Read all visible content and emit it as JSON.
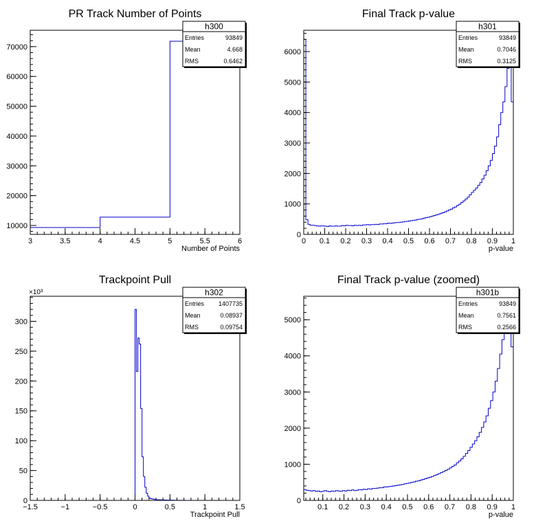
{
  "chart_data": [
    {
      "type": "histogram",
      "title": "PR Track Number of Points",
      "xlabel": "Number of Points",
      "ylabel": "",
      "xlim": [
        3,
        6
      ],
      "ylim": [
        7000,
        75500
      ],
      "xticks": [
        3,
        3.5,
        4,
        4.5,
        5,
        5.5,
        6
      ],
      "xtick_labels": [
        "3",
        "3.5",
        "4",
        "4.5",
        "5",
        "5.5",
        "6"
      ],
      "yticks": [
        10000,
        20000,
        30000,
        40000,
        50000,
        60000,
        70000
      ],
      "ytick_labels": [
        "10000",
        "20000",
        "30000",
        "40000",
        "50000",
        "60000",
        "70000"
      ],
      "edges": [
        3,
        4,
        5,
        6
      ],
      "values": [
        9300,
        12800,
        71800
      ],
      "color": "#0000cc",
      "stats": {
        "name": "h300",
        "rows": [
          [
            "Entries",
            "93849"
          ],
          [
            "Mean",
            "4.668"
          ],
          [
            "RMS",
            "0.6462"
          ]
        ]
      }
    },
    {
      "type": "histogram",
      "title": "Final Track p-value",
      "xlabel": "p-value",
      "ylabel": "",
      "xlim": [
        0,
        1
      ],
      "ylim": [
        0,
        6700
      ],
      "xticks": [
        0,
        0.1,
        0.2,
        0.3,
        0.4,
        0.5,
        0.6,
        0.7,
        0.8,
        0.9,
        1
      ],
      "xtick_labels": [
        "0",
        "0.1",
        "0.2",
        "0.3",
        "0.4",
        "0.5",
        "0.6",
        "0.7",
        "0.8",
        "0.9",
        "1"
      ],
      "yticks": [
        0,
        1000,
        2000,
        3000,
        4000,
        5000,
        6000
      ],
      "ytick_labels": [
        "0",
        "1000",
        "2000",
        "3000",
        "4000",
        "5000",
        "6000"
      ],
      "bin_range": [
        0,
        1
      ],
      "values": [
        6400,
        480,
        330,
        300,
        300,
        290,
        280,
        270,
        280,
        280,
        270,
        260,
        280,
        270,
        270,
        280,
        270,
        270,
        290,
        280,
        300,
        290,
        290,
        280,
        300,
        290,
        300,
        290,
        310,
        310,
        320,
        310,
        320,
        320,
        330,
        320,
        340,
        340,
        350,
        350,
        370,
        360,
        370,
        380,
        390,
        390,
        400,
        410,
        420,
        430,
        440,
        450,
        460,
        470,
        490,
        500,
        510,
        530,
        550,
        560,
        580,
        600,
        620,
        640,
        660,
        690,
        710,
        740,
        770,
        800,
        830,
        870,
        900,
        950,
        990,
        1050,
        1100,
        1160,
        1220,
        1300,
        1380,
        1450,
        1520,
        1610,
        1700,
        1820,
        1940,
        2090,
        2250,
        2430,
        2650,
        2900,
        3200,
        3600,
        4000,
        4350,
        4850,
        5450,
        5550,
        4350
      ],
      "color": "#0000cc",
      "stats": {
        "name": "h301",
        "rows": [
          [
            "Entries",
            "93849"
          ],
          [
            "Mean",
            "0.7046"
          ],
          [
            "RMS",
            "0.3125"
          ]
        ]
      }
    },
    {
      "type": "histogram",
      "title": "Trackpoint Pull",
      "xlabel": "Trackpoint Pull",
      "ylabel": "",
      "ymultiplier": "×10³",
      "xlim": [
        -1.5,
        1.5
      ],
      "ylim": [
        0,
        342
      ],
      "xticks": [
        -1.5,
        -1,
        -0.5,
        0,
        0.5,
        1,
        1.5
      ],
      "xtick_labels": [
        "−1.5",
        "−1",
        "−0.5",
        "0",
        "0.5",
        "1",
        "1.5"
      ],
      "yticks": [
        0,
        50,
        100,
        150,
        200,
        250,
        300
      ],
      "ytick_labels": [
        "0",
        "50",
        "100",
        "150",
        "200",
        "250",
        "300"
      ],
      "bin_range": [
        0,
        0.72
      ],
      "values": [
        320,
        216,
        272,
        262,
        154,
        73,
        40,
        22,
        12,
        7,
        4,
        3,
        2.5,
        2,
        1.5,
        1.2,
        1,
        1,
        0.9,
        0.8,
        0.7,
        0.6,
        0.6,
        0.5,
        0.5,
        0.4,
        0.4,
        0.3,
        0.3,
        0.3,
        0.2,
        0.2,
        0.2,
        0.2,
        0.1,
        0.1
      ],
      "color": "#0000cc",
      "stats": {
        "name": "h302",
        "rows": [
          [
            "Entries",
            "1407735"
          ],
          [
            "Mean",
            "0.08937"
          ],
          [
            "RMS",
            "0.09754"
          ]
        ]
      }
    },
    {
      "type": "histogram",
      "title": "Final Track p-value (zoomed)",
      "xlabel": "p-value",
      "ylabel": "",
      "xlim": [
        0.01,
        1
      ],
      "ylim": [
        0,
        5650
      ],
      "xticks": [
        0.1,
        0.2,
        0.3,
        0.4,
        0.5,
        0.6,
        0.7,
        0.8,
        0.9,
        1
      ],
      "xtick_labels": [
        "0.1",
        "0.2",
        "0.3",
        "0.4",
        "0.5",
        "0.6",
        "0.7",
        "0.8",
        "0.9",
        "1"
      ],
      "yticks": [
        0,
        1000,
        2000,
        3000,
        4000,
        5000
      ],
      "ytick_labels": [
        "0",
        "1000",
        "2000",
        "3000",
        "4000",
        "5000"
      ],
      "bin_range": [
        0.01,
        1
      ],
      "values": [
        300,
        280,
        270,
        260,
        270,
        250,
        260,
        240,
        250,
        270,
        250,
        240,
        260,
        250,
        270,
        260,
        250,
        270,
        260,
        280,
        270,
        290,
        270,
        280,
        300,
        290,
        310,
        300,
        320,
        310,
        330,
        330,
        340,
        350,
        350,
        370,
        370,
        380,
        390,
        400,
        410,
        420,
        430,
        440,
        460,
        470,
        480,
        500,
        510,
        530,
        540,
        560,
        580,
        600,
        620,
        640,
        660,
        690,
        710,
        740,
        770,
        800,
        830,
        860,
        900,
        940,
        980,
        1040,
        1090,
        1150,
        1220,
        1300,
        1380,
        1470,
        1560,
        1650,
        1760,
        1880,
        2020,
        2170,
        2340,
        2550,
        2760,
        3000,
        3300,
        3650,
        4050,
        4450,
        4950,
        5450,
        5600,
        4250
      ],
      "color": "#0000cc",
      "stats": {
        "name": "h301b",
        "rows": [
          [
            "Entries",
            "93849"
          ],
          [
            "Mean",
            "0.7561"
          ],
          [
            "RMS",
            "0.2566"
          ]
        ]
      }
    }
  ]
}
